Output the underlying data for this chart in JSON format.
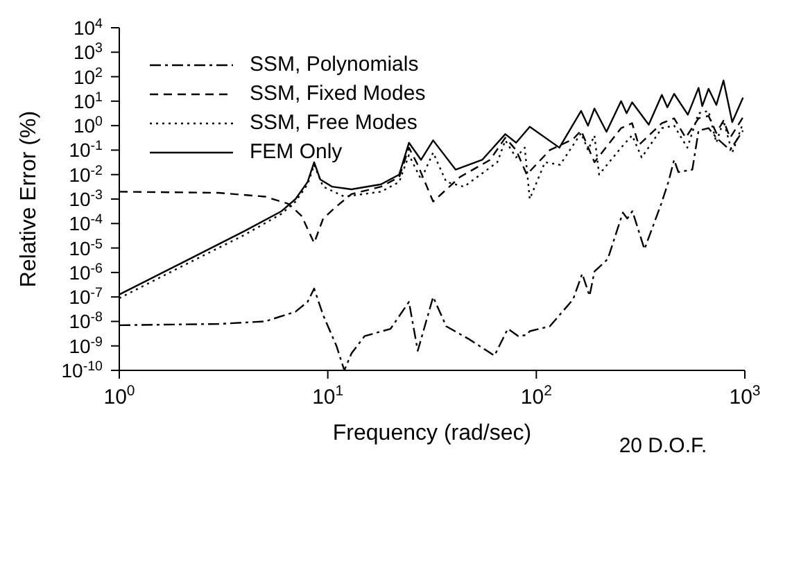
{
  "chart_data": {
    "type": "line",
    "xlabel": "Frequency (rad/sec)",
    "ylabel": "Relative Error (%)",
    "log": "xy",
    "legend": "top left",
    "xlim": [
      1,
      1000
    ],
    "ylim": [
      1e-10,
      10000
    ],
    "xticks": [
      {
        "value": 1,
        "label": "10$^{0}$"
      },
      {
        "value": 10,
        "label": "10$^{1}$"
      },
      {
        "value": 100,
        "label": "10$^{2}$"
      },
      {
        "value": 1000,
        "label": "10$^{3}$"
      }
    ],
    "yticks": [
      {
        "value": 1e-10,
        "label": "10$^{-10}$"
      },
      {
        "value": 1e-09,
        "label": "10$^{-9}$"
      },
      {
        "value": 1e-08,
        "label": "10$^{-8}$"
      },
      {
        "value": 1e-07,
        "label": "10$^{-7}$"
      },
      {
        "value": 1e-06,
        "label": "10$^{-6}$"
      },
      {
        "value": 1e-05,
        "label": "10$^{-5}$"
      },
      {
        "value": 0.0001,
        "label": "10$^{-4}$"
      },
      {
        "value": 0.001,
        "label": "10$^{-3}$"
      },
      {
        "value": 0.01,
        "label": "10$^{-2}$"
      },
      {
        "value": 0.1,
        "label": "10$^{-1}$"
      },
      {
        "value": 1,
        "label": "10$^{0}$"
      },
      {
        "value": 10,
        "label": "10$^{1}$"
      },
      {
        "value": 100,
        "label": "10$^{2}$"
      },
      {
        "value": 1000,
        "label": "10$^{3}$"
      },
      {
        "value": 10000,
        "label": "10$^{4}$"
      }
    ],
    "annotations": [
      "20 D.O.F."
    ],
    "series": [
      {
        "name": "SSM, Polynomials",
        "color": "#000000",
        "line_style": "dashdot",
        "x": [
          1,
          3,
          5,
          7,
          8,
          8.6,
          9.5,
          11,
          12,
          13,
          15,
          20,
          24.5,
          27,
          32,
          37,
          47,
          63,
          73,
          82,
          90,
          93,
          116,
          150,
          166,
          180,
          190,
          220,
          260,
          273,
          289,
          330,
          397,
          430,
          458,
          480,
          560,
          600,
          670,
          730,
          850,
          980
        ],
        "values": [
          7e-09,
          7.9e-09,
          1e-08,
          2.5e-08,
          6.3e-08,
          2.2e-07,
          1.8e-08,
          1e-09,
          1e-10,
          5e-10,
          2.5e-09,
          5e-09,
          6.3e-08,
          6.3e-10,
          1e-07,
          6.3e-09,
          2e-09,
          4e-10,
          5e-09,
          2.5e-09,
          2.8e-09,
          4e-09,
          6.3e-09,
          7.9e-08,
          8.9e-07,
          1.1e-07,
          1.1e-06,
          3.5e-06,
          0.00028,
          0.00016,
          0.00032,
          8.9e-06,
          0.00063,
          0.005,
          0.04,
          0.0126,
          0.016,
          0.63,
          0.79,
          0.32,
          0.1,
          0.63
        ]
      },
      {
        "name": "SSM, Fixed Modes",
        "color": "#000000",
        "line_style": "dashed",
        "x": [
          1,
          3,
          5,
          6.5,
          7.5,
          8.6,
          9.5,
          11,
          13,
          18,
          22,
          24.5,
          27,
          32,
          43,
          60,
          71,
          80,
          90,
          116,
          150,
          164,
          190,
          255,
          288,
          310,
          400,
          458,
          520,
          600,
          670,
          730,
          790,
          850,
          980
        ],
        "values": [
          0.002,
          0.0018,
          0.00126,
          0.00063,
          0.0002,
          1.6e-05,
          0.00016,
          0.0005,
          0.0016,
          0.0032,
          0.0079,
          0.126,
          0.025,
          0.00079,
          0.0079,
          0.04,
          0.32,
          0.1,
          0.01,
          0.1,
          0.28,
          0.63,
          0.032,
          0.79,
          1.26,
          0.16,
          1.26,
          2,
          0.32,
          2,
          2.5,
          0.5,
          1.6,
          0.32,
          2.2
        ]
      },
      {
        "name": "SSM, Free Modes",
        "color": "#000000",
        "line_style": "dotted",
        "x": [
          1,
          2,
          4,
          6,
          7,
          8,
          8.6,
          9.5,
          12,
          18,
          22,
          24.5,
          28,
          32,
          37,
          45,
          65,
          71,
          80,
          88,
          93,
          110,
          130,
          164,
          177,
          190,
          200,
          255,
          288,
          320,
          400,
          458,
          530,
          600,
          670,
          730,
          790,
          870,
          980
        ],
        "values": [
          8.9e-08,
          1.8e-06,
          3.5e-05,
          0.00025,
          0.00079,
          0.004,
          0.025,
          0.0032,
          0.00126,
          0.002,
          0.005,
          0.063,
          0.0063,
          0.079,
          0.005,
          0.0032,
          0.032,
          0.25,
          0.05,
          0.126,
          0.001,
          0.032,
          0.025,
          0.5,
          0.1,
          0.4,
          0.01,
          0.126,
          0.4,
          0.05,
          0.79,
          1,
          0.126,
          3.2,
          4,
          0.2,
          1.6,
          0.079,
          1.26
        ]
      },
      {
        "name": "FEM Only",
        "color": "#000000",
        "line_style": "solid",
        "x": [
          1,
          2,
          4,
          6,
          7,
          8,
          8.6,
          9.2,
          10.5,
          13,
          18,
          22,
          24.5,
          28,
          32,
          41,
          55,
          71,
          80,
          93,
          129,
          164,
          177,
          190,
          217,
          255,
          271,
          288,
          346,
          400,
          425,
          458,
          533,
          600,
          625,
          670,
          730,
          790,
          870,
          980
        ],
        "values": [
          1.26e-07,
          2.5e-06,
          5e-05,
          0.00032,
          0.001,
          0.005,
          0.032,
          0.0063,
          0.0032,
          0.0025,
          0.004,
          0.01,
          0.2,
          0.04,
          0.25,
          0.016,
          0.04,
          0.45,
          0.2,
          0.9,
          0.126,
          4,
          1,
          5,
          0.56,
          10,
          3.2,
          9,
          1.1,
          18,
          5.6,
          20,
          2.8,
          35,
          6.3,
          32,
          7,
          70,
          1.4,
          14
        ]
      }
    ]
  }
}
